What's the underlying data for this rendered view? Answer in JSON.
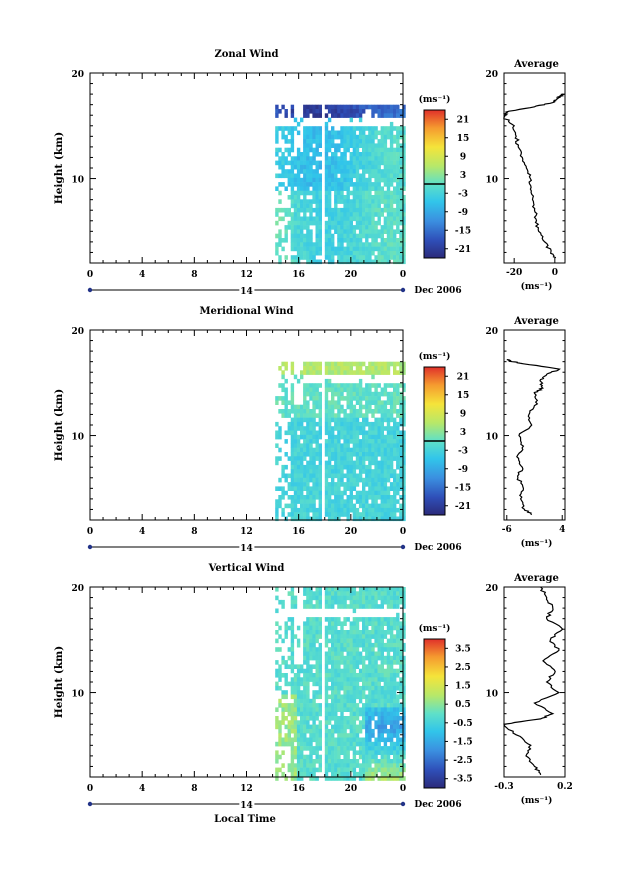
{
  "figure": {
    "date_label": "Dec 2006",
    "xlabel": "Local Time"
  },
  "chart_data": [
    {
      "type": "heatmap",
      "title": "Zonal Wind",
      "ylabel": "Height (km)",
      "xlim": [
        0,
        24
      ],
      "ylim": [
        2,
        20
      ],
      "x_ticks": [
        "0",
        "4",
        "8",
        "12",
        "16",
        "20",
        "0"
      ],
      "y_ticks": [
        "10",
        "20"
      ],
      "day_label": "14",
      "colorbar": {
        "unit": "(ms⁻¹)",
        "ticks": [
          "21",
          "15",
          "9",
          "3",
          "-3",
          "-9",
          "-15",
          "-21"
        ],
        "range": [
          -24,
          24
        ]
      },
      "data_coverage": {
        "x_start": 14.2,
        "x_end": 24.0,
        "y_top": 17.0
      },
      "average_profile": {
        "title": "Average",
        "xlabel": "(ms⁻¹)",
        "x_ticks": [
          "-20",
          "0"
        ],
        "xlim": [
          -25,
          5
        ],
        "profile": [
          [
            2.5,
            0.5
          ],
          [
            3,
            -2
          ],
          [
            4,
            -5
          ],
          [
            5,
            -8
          ],
          [
            6,
            -9
          ],
          [
            7,
            -10
          ],
          [
            8,
            -11
          ],
          [
            9,
            -12
          ],
          [
            10,
            -12
          ],
          [
            11,
            -14
          ],
          [
            12,
            -16
          ],
          [
            13,
            -18
          ],
          [
            14,
            -19
          ],
          [
            15,
            -20
          ],
          [
            15.8,
            -25
          ],
          [
            16.3,
            -24
          ],
          [
            16.8,
            -10
          ],
          [
            17.2,
            -1
          ],
          [
            17.5,
            1
          ],
          [
            17.8,
            3
          ],
          [
            18,
            4
          ]
        ]
      }
    },
    {
      "type": "heatmap",
      "title": "Meridional Wind",
      "ylabel": "Height (km)",
      "xlim": [
        0,
        24
      ],
      "ylim": [
        2,
        20
      ],
      "x_ticks": [
        "0",
        "4",
        "8",
        "12",
        "16",
        "20",
        "0"
      ],
      "y_ticks": [
        "10",
        "20"
      ],
      "day_label": "14",
      "colorbar": {
        "unit": "(ms⁻¹)",
        "ticks": [
          "21",
          "15",
          "9",
          "3",
          "-3",
          "-9",
          "-15",
          "-21"
        ],
        "range": [
          -24,
          24
        ]
      },
      "data_coverage": {
        "x_start": 14.2,
        "x_end": 24.0,
        "y_top": 17.0
      },
      "average_profile": {
        "title": "Average",
        "xlabel": "(ms⁻¹)",
        "x_ticks": [
          "-6",
          "4"
        ],
        "xlim": [
          -6.5,
          4.5
        ],
        "profile": [
          [
            2.5,
            -1.5
          ],
          [
            3,
            -2.8
          ],
          [
            4,
            -3.5
          ],
          [
            5,
            -3
          ],
          [
            6,
            -4
          ],
          [
            7,
            -3.2
          ],
          [
            8,
            -4.2
          ],
          [
            9,
            -3
          ],
          [
            10,
            -3.8
          ],
          [
            11,
            -1.5
          ],
          [
            12,
            -2
          ],
          [
            13,
            -0.5
          ],
          [
            14,
            -1
          ],
          [
            14.5,
            0.5
          ],
          [
            15.2,
            0
          ],
          [
            15.8,
            1.2
          ],
          [
            16.3,
            3.5
          ],
          [
            16.8,
            -3
          ],
          [
            17,
            -5
          ],
          [
            17.2,
            -6
          ]
        ]
      }
    },
    {
      "type": "heatmap",
      "title": "Vertical Wind",
      "ylabel": "Height (km)",
      "xlim": [
        0,
        24
      ],
      "ylim": [
        2,
        20
      ],
      "x_ticks": [
        "0",
        "4",
        "8",
        "12",
        "16",
        "20",
        "0"
      ],
      "y_ticks": [
        "10",
        "20"
      ],
      "day_label": "14",
      "colorbar": {
        "unit": "(ms⁻¹)",
        "ticks": [
          "3.5",
          "2.5",
          "1.5",
          "0.5",
          "-0.5",
          "-1.5",
          "-2.5",
          "-3.5"
        ],
        "range": [
          -4,
          4
        ]
      },
      "data_coverage": {
        "x_start": 14.2,
        "x_end": 24.0,
        "y_top": 20.0
      },
      "average_profile": {
        "title": "Average",
        "xlabel": "(ms⁻¹)",
        "x_ticks": [
          "-0.3",
          "0.2"
        ],
        "xlim": [
          -0.3,
          0.2
        ],
        "profile": [
          [
            2.2,
            0.0
          ],
          [
            3,
            -0.05
          ],
          [
            4,
            -0.12
          ],
          [
            5,
            -0.08
          ],
          [
            6,
            -0.2
          ],
          [
            7,
            -0.3
          ],
          [
            7.5,
            0.0
          ],
          [
            8,
            0.1
          ],
          [
            9,
            -0.05
          ],
          [
            10,
            0.15
          ],
          [
            11,
            0.05
          ],
          [
            12,
            0.12
          ],
          [
            13,
            0.02
          ],
          [
            14,
            0.15
          ],
          [
            15,
            0.08
          ],
          [
            16,
            0.18
          ],
          [
            17,
            0.05
          ],
          [
            18,
            0.1
          ],
          [
            19,
            0.05
          ],
          [
            20,
            0.0
          ]
        ]
      }
    }
  ]
}
